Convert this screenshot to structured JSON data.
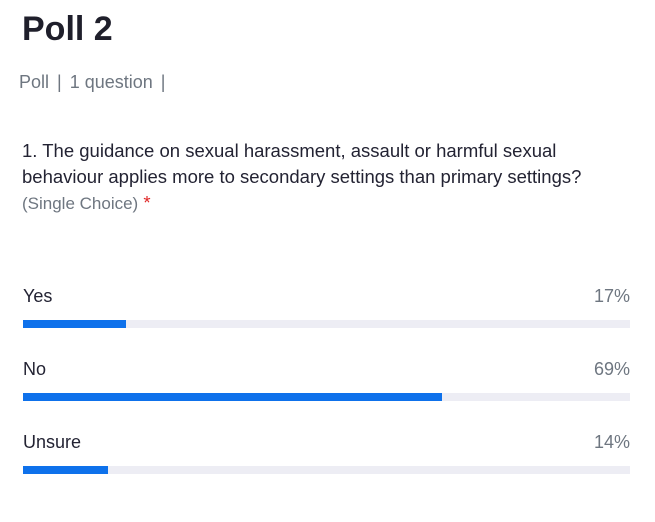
{
  "title": "Poll 2",
  "meta": {
    "type": "Poll",
    "count": "1 question"
  },
  "question": {
    "text": "1. The guidance on sexual harassment, assault or harmful sexual behaviour applies more to secondary settings than primary settings?",
    "kind": "(Single Choice)",
    "required": "*"
  },
  "options": [
    {
      "label": "Yes",
      "percent": "17%",
      "value": 17
    },
    {
      "label": "No",
      "percent": "69%",
      "value": 69
    },
    {
      "label": "Unsure",
      "percent": "14%",
      "value": 14
    }
  ],
  "colors": {
    "bar_fill": "#0e71eb",
    "bar_track": "#ededf4"
  }
}
